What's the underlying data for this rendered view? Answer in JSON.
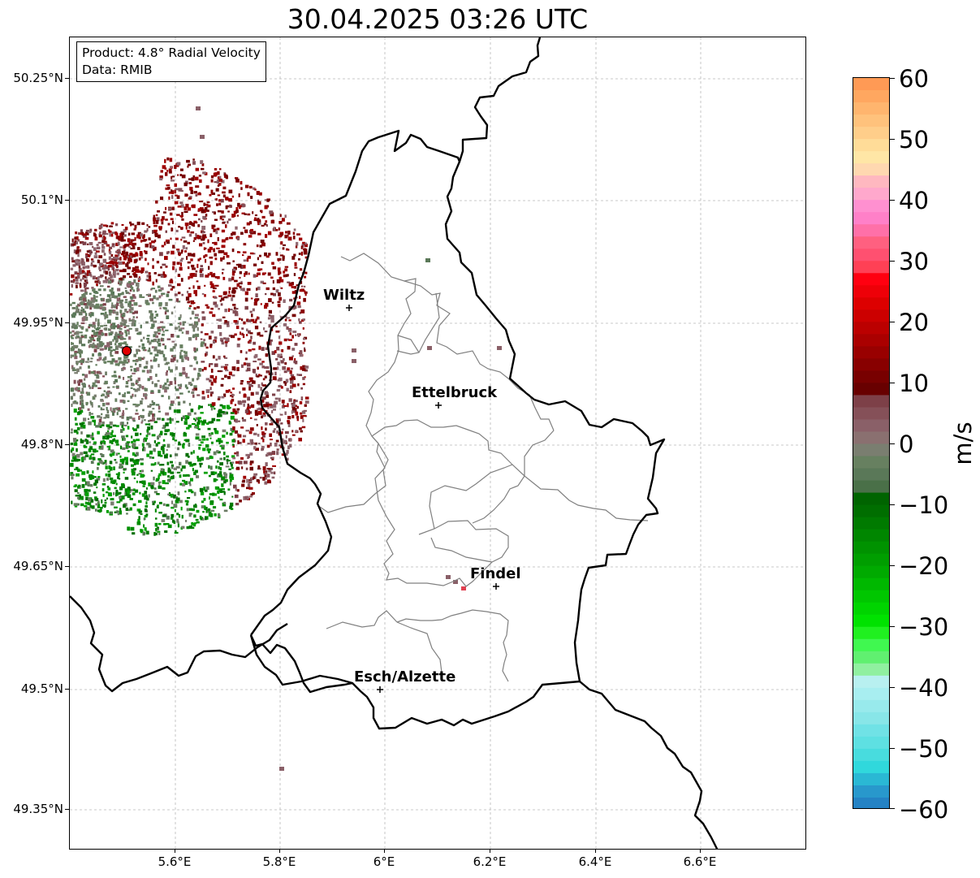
{
  "title": "30.04.2025 03:26 UTC",
  "info": {
    "product": "Product: 4.8° Radial Velocity",
    "data": "Data: RMIB"
  },
  "lat_ticks": [
    "50.25°N",
    "50.1°N",
    "49.95°N",
    "49.8°N",
    "49.65°N",
    "49.5°N",
    "49.35°N"
  ],
  "lon_ticks": [
    "5.6°E",
    "5.8°E",
    "6°E",
    "6.2°E",
    "6.4°E",
    "6.6°E"
  ],
  "cities": {
    "wiltz": "Wiltz",
    "ettelbruck": "Ettelbruck",
    "findel": "Findel",
    "esch": "Esch/Alzette"
  },
  "colorbar": {
    "unit": "m/s",
    "ticks": [
      "60",
      "50",
      "40",
      "30",
      "20",
      "10",
      "0",
      "−10",
      "−20",
      "−30",
      "−40",
      "−50",
      "−60"
    ],
    "min": -60,
    "max": 60
  },
  "colors": {
    "radar_site": "#e00000",
    "border": "#000000",
    "canton": "#808080"
  }
}
